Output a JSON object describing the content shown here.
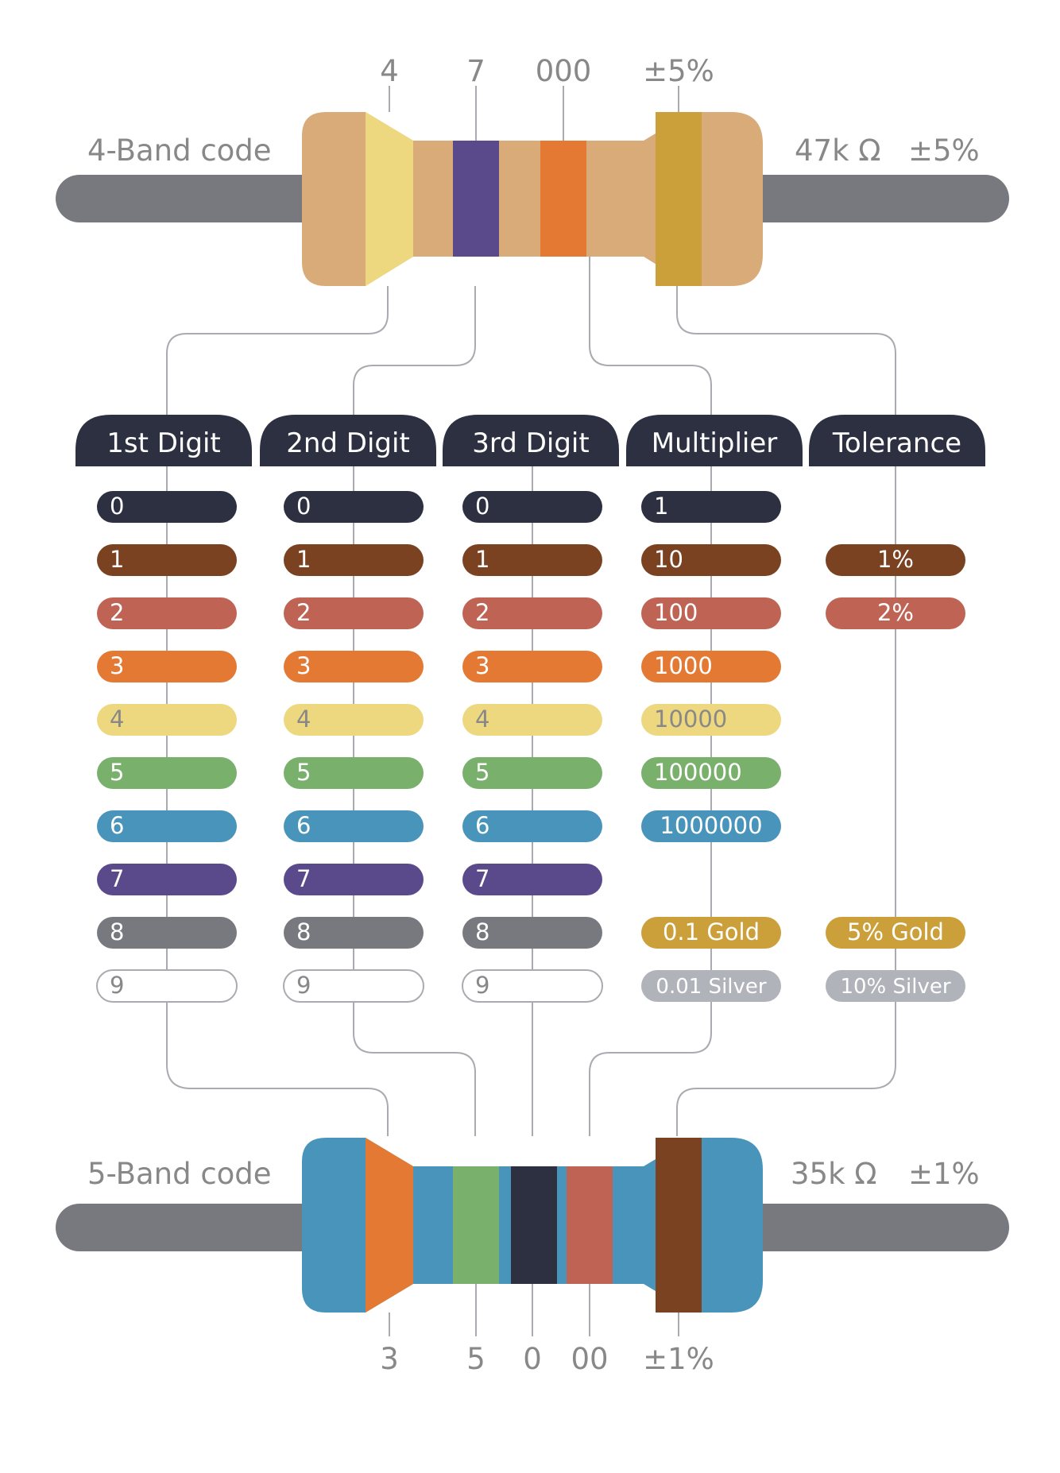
{
  "top_resistor": {
    "label": "4-Band code",
    "value": "47k Ω",
    "tolerance": "±5%",
    "body_color": "#d8ab79",
    "bands": [
      {
        "name": "1st Digit",
        "color": "#eed87f",
        "digit": "4"
      },
      {
        "name": "2nd Digit",
        "color": "#5b4a8b",
        "digit": "7"
      },
      {
        "name": "Multiplier",
        "color": "#e47934",
        "digit": "000"
      },
      {
        "name": "Tolerance",
        "color": "#cba03a",
        "digit": "±5%"
      }
    ]
  },
  "bottom_resistor": {
    "label": "5-Band code",
    "value": "35k Ω",
    "tolerance": "±1%",
    "body_color": "#4894bb",
    "bands": [
      {
        "name": "1st Digit",
        "color": "#e47934",
        "digit": "3"
      },
      {
        "name": "2nd Digit",
        "color": "#79b06c",
        "digit": "5"
      },
      {
        "name": "3rd Digit",
        "color": "#2c3040",
        "digit": "0"
      },
      {
        "name": "Multiplier",
        "color": "#bf6454",
        "digit": "00"
      },
      {
        "name": "Tolerance",
        "color": "#7a4220",
        "digit": "±1%"
      }
    ]
  },
  "columns": [
    {
      "header": "1st Digit",
      "items": [
        {
          "row": 0,
          "text": "0",
          "color": "#2c3040",
          "text_color": "#ffffff"
        },
        {
          "row": 1,
          "text": "1",
          "color": "#7a4220",
          "text_color": "#ffffff"
        },
        {
          "row": 2,
          "text": "2",
          "color": "#bf6454",
          "text_color": "#ffffff"
        },
        {
          "row": 3,
          "text": "3",
          "color": "#e47934",
          "text_color": "#ffffff"
        },
        {
          "row": 4,
          "text": "4",
          "color": "#eed87f",
          "text_color": "#888888"
        },
        {
          "row": 5,
          "text": "5",
          "color": "#79b06c",
          "text_color": "#ffffff"
        },
        {
          "row": 6,
          "text": "6",
          "color": "#4894bb",
          "text_color": "#ffffff"
        },
        {
          "row": 7,
          "text": "7",
          "color": "#5b4a8b",
          "text_color": "#ffffff"
        },
        {
          "row": 8,
          "text": "8",
          "color": "#77797f",
          "text_color": "#ffffff"
        },
        {
          "row": 9,
          "text": "9",
          "color": "#ffffff",
          "text_color": "#888888"
        }
      ]
    },
    {
      "header": "2nd Digit",
      "items": [
        {
          "row": 0,
          "text": "0",
          "color": "#2c3040",
          "text_color": "#ffffff"
        },
        {
          "row": 1,
          "text": "1",
          "color": "#7a4220",
          "text_color": "#ffffff"
        },
        {
          "row": 2,
          "text": "2",
          "color": "#bf6454",
          "text_color": "#ffffff"
        },
        {
          "row": 3,
          "text": "3",
          "color": "#e47934",
          "text_color": "#ffffff"
        },
        {
          "row": 4,
          "text": "4",
          "color": "#eed87f",
          "text_color": "#888888"
        },
        {
          "row": 5,
          "text": "5",
          "color": "#79b06c",
          "text_color": "#ffffff"
        },
        {
          "row": 6,
          "text": "6",
          "color": "#4894bb",
          "text_color": "#ffffff"
        },
        {
          "row": 7,
          "text": "7",
          "color": "#5b4a8b",
          "text_color": "#ffffff"
        },
        {
          "row": 8,
          "text": "8",
          "color": "#77797f",
          "text_color": "#ffffff"
        },
        {
          "row": 9,
          "text": "9",
          "color": "#ffffff",
          "text_color": "#888888"
        }
      ]
    },
    {
      "header": "3rd Digit",
      "items": [
        {
          "row": 0,
          "text": "0",
          "color": "#2c3040",
          "text_color": "#ffffff"
        },
        {
          "row": 1,
          "text": "1",
          "color": "#7a4220",
          "text_color": "#ffffff"
        },
        {
          "row": 2,
          "text": "2",
          "color": "#bf6454",
          "text_color": "#ffffff"
        },
        {
          "row": 3,
          "text": "3",
          "color": "#e47934",
          "text_color": "#ffffff"
        },
        {
          "row": 4,
          "text": "4",
          "color": "#eed87f",
          "text_color": "#888888"
        },
        {
          "row": 5,
          "text": "5",
          "color": "#79b06c",
          "text_color": "#ffffff"
        },
        {
          "row": 6,
          "text": "6",
          "color": "#4894bb",
          "text_color": "#ffffff"
        },
        {
          "row": 7,
          "text": "7",
          "color": "#5b4a8b",
          "text_color": "#ffffff"
        },
        {
          "row": 8,
          "text": "8",
          "color": "#77797f",
          "text_color": "#ffffff"
        },
        {
          "row": 9,
          "text": "9",
          "color": "#ffffff",
          "text_color": "#888888"
        }
      ]
    },
    {
      "header": "Multiplier",
      "items": [
        {
          "row": 0,
          "text": "1",
          "color": "#2c3040",
          "text_color": "#ffffff"
        },
        {
          "row": 1,
          "text": "10",
          "color": "#7a4220",
          "text_color": "#ffffff"
        },
        {
          "row": 2,
          "text": "100",
          "color": "#bf6454",
          "text_color": "#ffffff"
        },
        {
          "row": 3,
          "text": "1000",
          "color": "#e47934",
          "text_color": "#ffffff"
        },
        {
          "row": 4,
          "text": "10000",
          "color": "#eed87f",
          "text_color": "#888888"
        },
        {
          "row": 5,
          "text": "100000",
          "color": "#79b06c",
          "text_color": "#ffffff"
        },
        {
          "row": 6,
          "text": "1000000",
          "color": "#4894bb",
          "text_color": "#ffffff"
        },
        {
          "row": 8,
          "text": "0.1 Gold",
          "color": "#cba03a",
          "text_color": "#ffffff"
        },
        {
          "row": 9,
          "text": "0.01 Silver",
          "color": "#b1b3bb",
          "text_color": "#ffffff"
        }
      ]
    },
    {
      "header": "Tolerance",
      "items": [
        {
          "row": 1,
          "text": "1%",
          "color": "#7a4220",
          "text_color": "#ffffff"
        },
        {
          "row": 2,
          "text": "2%",
          "color": "#bf6454",
          "text_color": "#ffffff"
        },
        {
          "row": 8,
          "text": "5% Gold",
          "color": "#cba03a",
          "text_color": "#ffffff"
        },
        {
          "row": 9,
          "text": "10% Silver",
          "color": "#b1b3bb",
          "text_color": "#ffffff"
        }
      ]
    }
  ],
  "colors": {
    "header_bg": "#2c3040",
    "lead": "#77797f",
    "connector": "#a9abb0",
    "label_text": "#888888"
  }
}
